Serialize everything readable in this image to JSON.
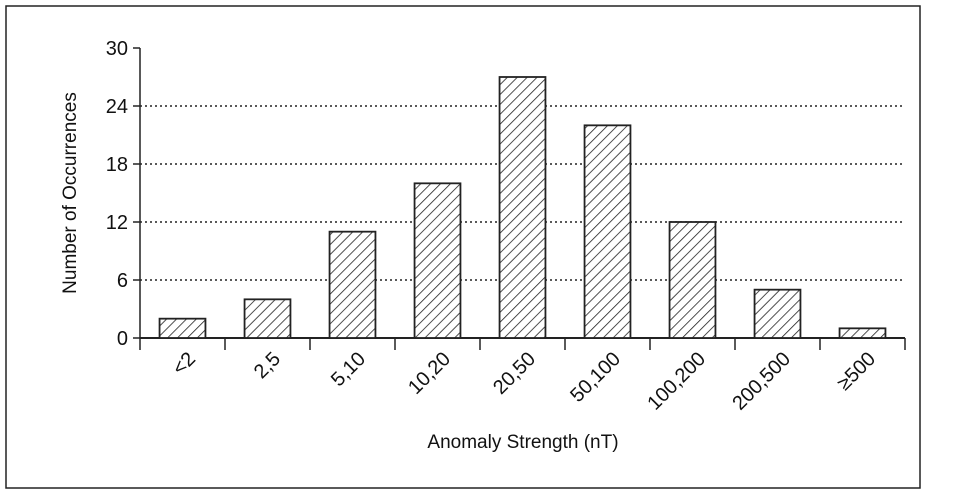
{
  "chart_data": {
    "type": "bar",
    "x_label": "Anomaly Strength (nT)",
    "y_label": "Number of Occurrences",
    "categories": [
      "<2",
      "2,5",
      "5,10",
      "10,20",
      "20,50",
      "50,100",
      "100,200",
      "200,500",
      "≥500"
    ],
    "values": [
      2,
      4,
      11,
      16,
      27,
      22,
      12,
      5,
      1
    ],
    "color": "#222222",
    "ylim": [
      0,
      30
    ],
    "yticks": [
      0,
      6,
      12,
      18,
      24,
      30
    ],
    "grid": true
  }
}
